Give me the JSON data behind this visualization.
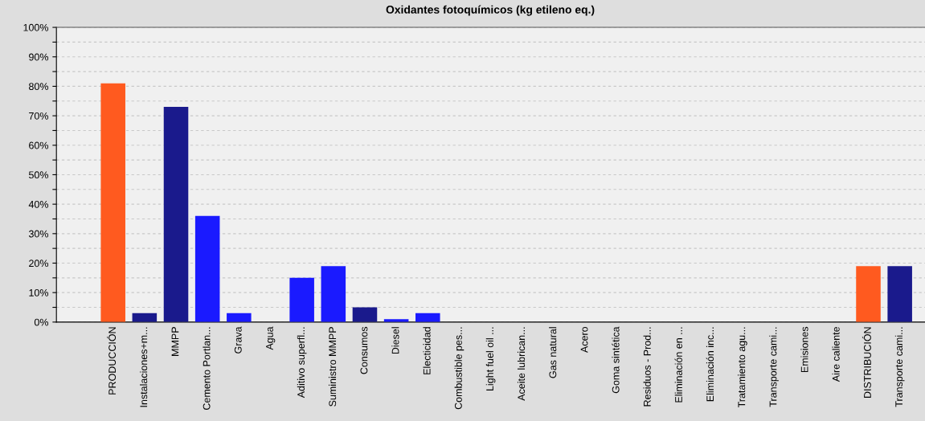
{
  "chart_data": {
    "type": "bar",
    "title": "Oxidantes fotoquímicos (kg etileno eq.)",
    "categories": [
      "PRODUCCIÓN",
      "Instalaciones+m...",
      "MMPP",
      "Cemento Portlan...",
      "Grava",
      "Agua",
      "Aditivo superfl...",
      "Suministro MMPP",
      "Consumos",
      "Diesel",
      "Electicidad",
      "Combustible pes...",
      "Light fuel oil ...",
      "Aceite lubrican...",
      "Gas natural",
      "Acero",
      "Goma sintética",
      "Residuos - Prod...",
      "Eliminación en ...",
      "Eliminación inc...",
      "Tratamiento agu...",
      "Transporte cami...",
      "Emisiones",
      "Aire caliente",
      "DISTRIBUCIÓN",
      "Transporte cami..."
    ],
    "values": [
      81,
      3,
      73,
      36,
      3,
      0,
      15,
      19,
      5,
      1,
      3,
      0,
      0,
      0,
      0,
      0,
      0,
      0,
      0,
      0,
      0,
      0,
      0,
      0,
      19,
      19
    ],
    "colors": [
      "#ff5a1f",
      "#1a1a8c",
      "#1a1a8c",
      "#1a1aff",
      "#1a1aff",
      "#1a1aff",
      "#1a1aff",
      "#1a1aff",
      "#1a1a8c",
      "#1a1aff",
      "#1a1aff",
      "#1a1aff",
      "#1a1aff",
      "#1a1aff",
      "#1a1aff",
      "#1a1aff",
      "#1a1aff",
      "#1a1aff",
      "#1a1aff",
      "#1a1aff",
      "#1a1aff",
      "#1a1aff",
      "#1a1aff",
      "#1a1aff",
      "#ff5a1f",
      "#1a1a8c"
    ],
    "ylim": [
      0,
      100
    ],
    "yticks": [
      {
        "value": 0,
        "label": "0%"
      },
      {
        "value": 5,
        "label": null
      },
      {
        "value": 10,
        "label": "10%"
      },
      {
        "value": 15,
        "label": null
      },
      {
        "value": 20,
        "label": "20%"
      },
      {
        "value": 25,
        "label": null
      },
      {
        "value": 30,
        "label": "30%"
      },
      {
        "value": 35,
        "label": null
      },
      {
        "value": 40,
        "label": "40%"
      },
      {
        "value": 45,
        "label": null
      },
      {
        "value": 50,
        "label": "50%"
      },
      {
        "value": 55,
        "label": null
      },
      {
        "value": 60,
        "label": "60%"
      },
      {
        "value": 65,
        "label": null
      },
      {
        "value": 70,
        "label": "70%"
      },
      {
        "value": 75,
        "label": null
      },
      {
        "value": 80,
        "label": "80%"
      },
      {
        "value": 85,
        "label": null
      },
      {
        "value": 90,
        "label": "90%"
      },
      {
        "value": 95,
        "label": null
      },
      {
        "value": 100,
        "label": "100%"
      }
    ],
    "grid": "y"
  }
}
